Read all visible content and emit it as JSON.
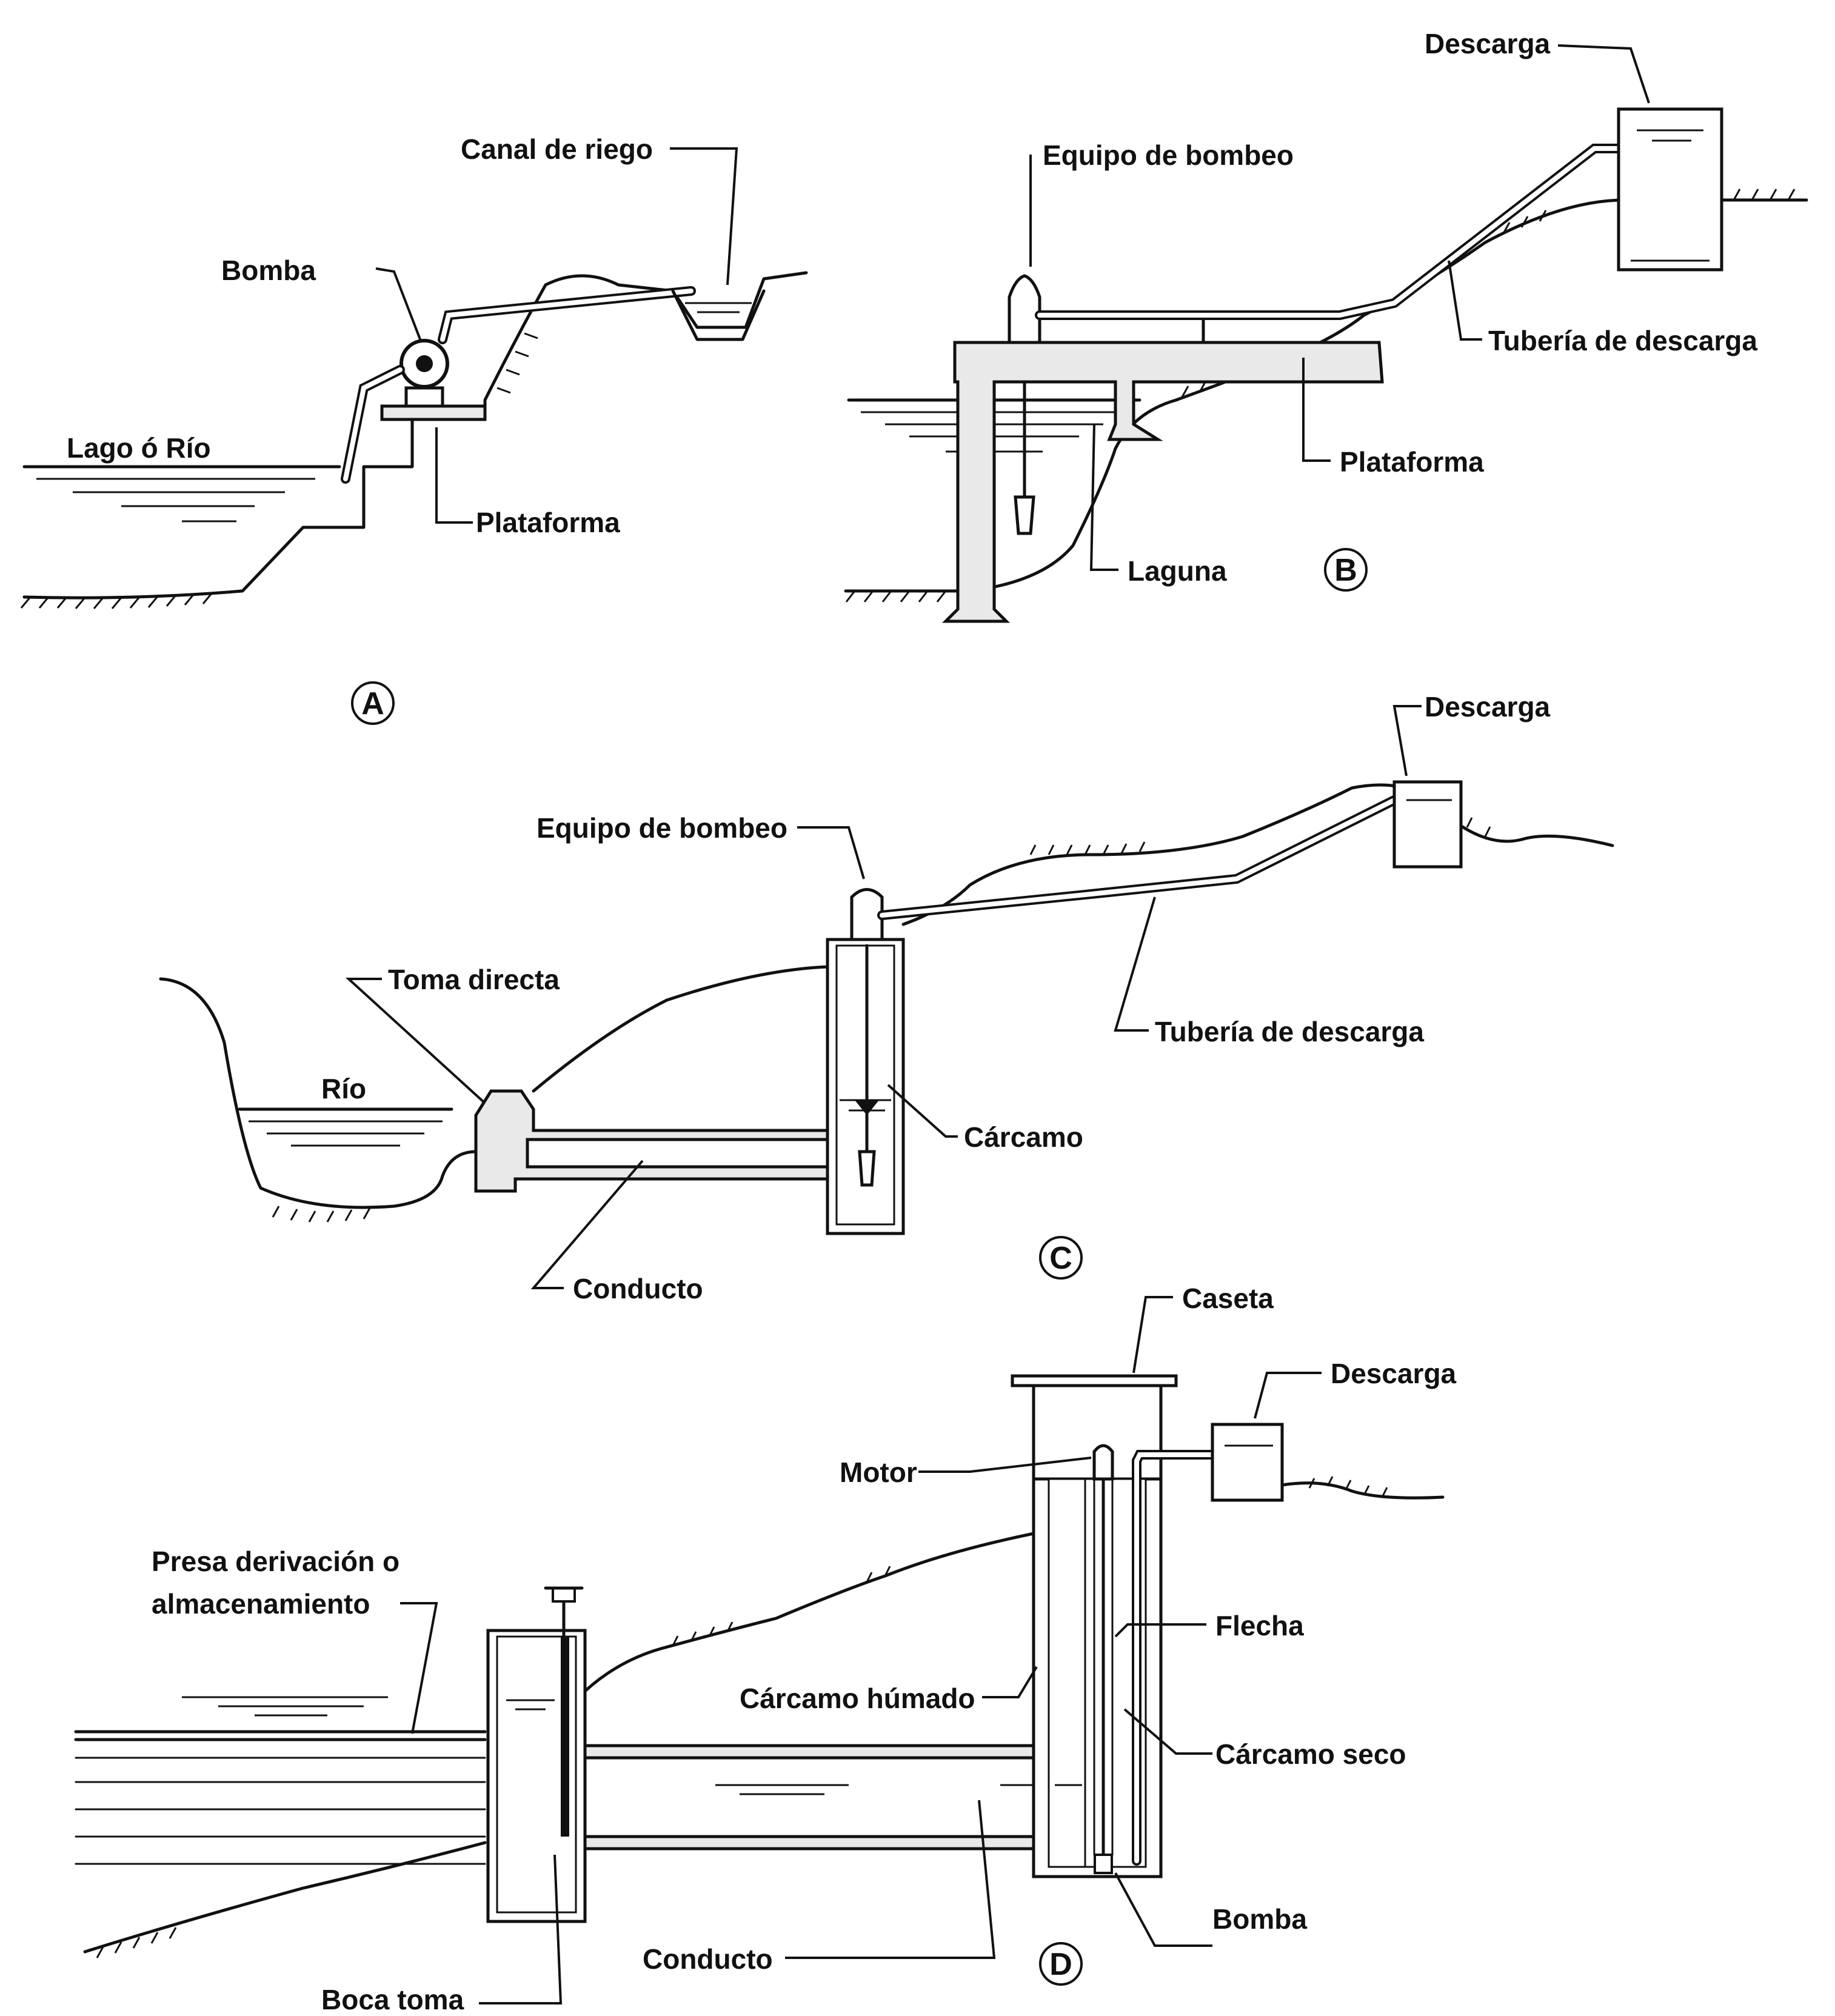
{
  "panels": {
    "a": {
      "letter": "A",
      "labels": {
        "canal": "Canal de riego",
        "bomba": "Bomba",
        "lago": "Lago ó Río",
        "plataforma": "Plataforma"
      }
    },
    "b": {
      "letter": "B",
      "labels": {
        "descarga": "Descarga",
        "equipo": "Equipo de bombeo",
        "tuberia": "Tubería de descarga",
        "plataforma": "Plataforma",
        "laguna": "Laguna"
      }
    },
    "c": {
      "letter": "C",
      "labels": {
        "descarga": "Descarga",
        "equipo": "Equipo de bombeo",
        "toma": "Toma directa",
        "tuberia": "Tubería de descarga",
        "rio": "Río",
        "carcamo": "Cárcamo",
        "conducto": "Conducto"
      }
    },
    "d": {
      "letter": "D",
      "labels": {
        "caseta": "Caseta",
        "descarga": "Descarga",
        "motor": "Motor",
        "presa_1": "Presa derivación o",
        "presa_2": "almacenamiento",
        "flecha": "Flecha",
        "carcamo_humedo": "Cárcamo húmado",
        "carcamo_seco": "Cárcamo seco",
        "bomba": "Bomba",
        "conducto": "Conducto",
        "boca_toma": "Boca toma"
      }
    }
  }
}
